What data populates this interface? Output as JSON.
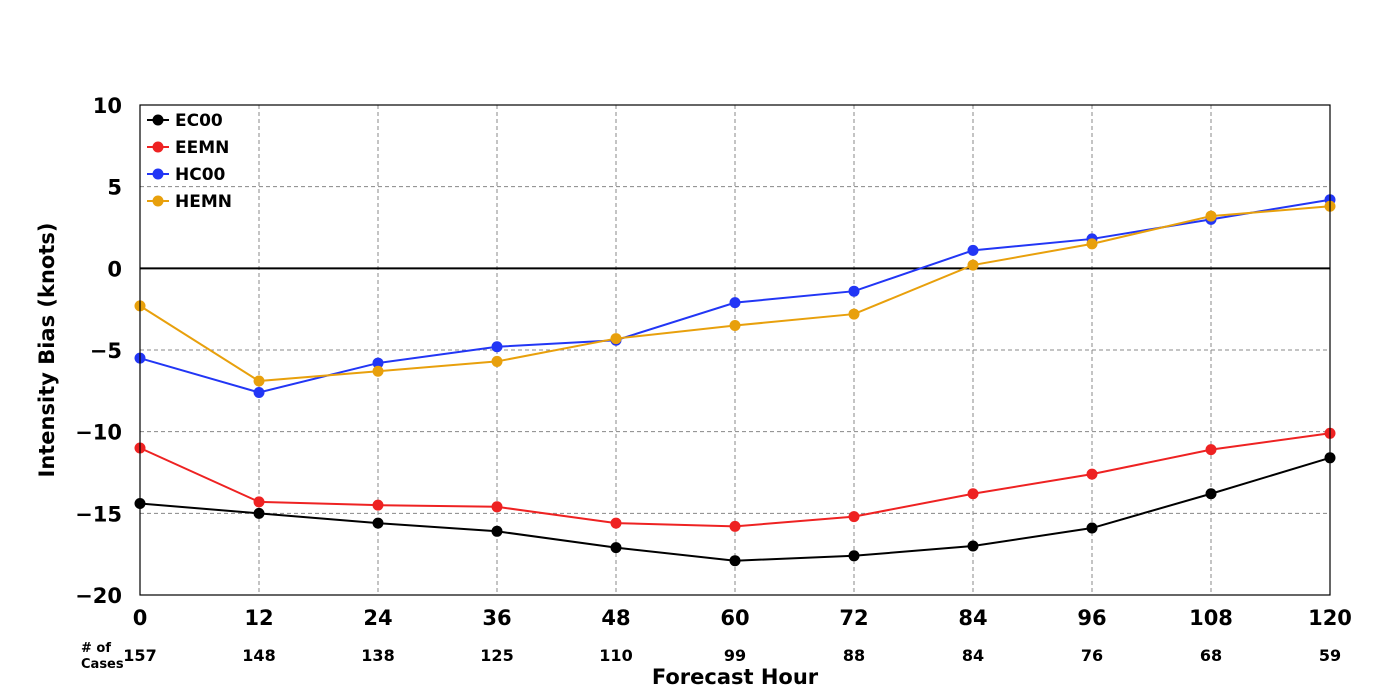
{
  "chart_data": {
    "type": "line",
    "title": "",
    "xlabel": "Forecast Hour",
    "ylabel": "Intensity Bias (knots)",
    "x": [
      0,
      12,
      24,
      36,
      48,
      60,
      72,
      84,
      96,
      108,
      120
    ],
    "x_tick_labels": [
      "0",
      "12",
      "24",
      "36",
      "48",
      "60",
      "72",
      "84",
      "96",
      "108",
      "120"
    ],
    "y_tick_labels": [
      "10",
      "5",
      "0",
      "−5",
      "−10",
      "−15",
      "−20"
    ],
    "y_ticks": [
      10,
      5,
      0,
      -5,
      -10,
      -15,
      -20
    ],
    "xlim": [
      0,
      120
    ],
    "ylim": [
      -20,
      10
    ],
    "grid": true,
    "zero_line": true,
    "legend_position": "top-left",
    "cases_label_line1": "# of",
    "cases_label_line2": "Cases",
    "cases": [
      "157",
      "148",
      "138",
      "125",
      "110",
      "99",
      "88",
      "84",
      "76",
      "68",
      "59"
    ],
    "series": [
      {
        "name": "EC00",
        "color": "#000000",
        "values": [
          -14.4,
          -15.0,
          -15.6,
          -16.1,
          -17.1,
          -17.9,
          -17.6,
          -17.0,
          -15.9,
          -13.8,
          -11.6
        ]
      },
      {
        "name": "EEMN",
        "color": "#ee2222",
        "values": [
          -11.0,
          -14.3,
          -14.5,
          -14.6,
          -15.6,
          -15.8,
          -15.2,
          -13.8,
          -12.6,
          -11.1,
          -10.1
        ]
      },
      {
        "name": "HC00",
        "color": "#2236f5",
        "values": [
          -5.5,
          -7.6,
          -5.8,
          -4.8,
          -4.4,
          -2.1,
          -1.4,
          1.1,
          1.8,
          3.0,
          4.2
        ]
      },
      {
        "name": "HEMN",
        "color": "#e8a00c",
        "values": [
          -2.3,
          -6.9,
          -6.3,
          -5.7,
          -4.3,
          -3.5,
          -2.8,
          0.2,
          1.5,
          3.2,
          3.8
        ]
      }
    ]
  }
}
